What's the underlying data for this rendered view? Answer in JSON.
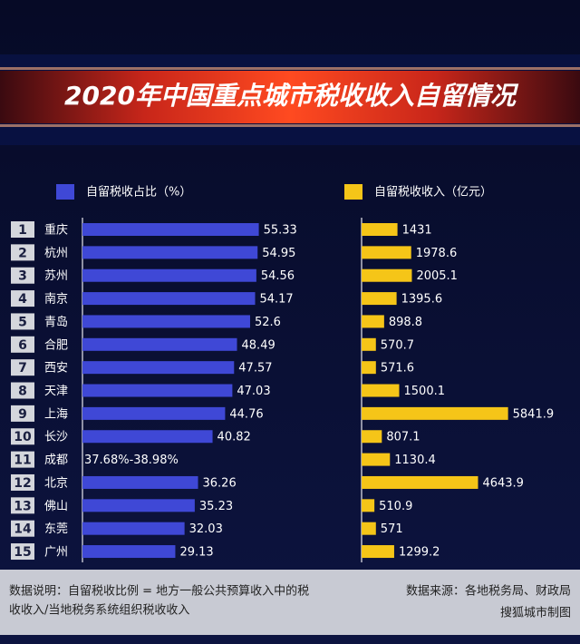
{
  "title": "2020年中国重点城市税收收入自留情况",
  "ranks": [
    1,
    2,
    3,
    4,
    5,
    6,
    7,
    8,
    9,
    10,
    11,
    12,
    13,
    14,
    15
  ],
  "chart_data": [
    {
      "type": "bar",
      "orientation": "horizontal",
      "categories": [
        "重庆",
        "杭州",
        "苏州",
        "南京",
        "青岛",
        "合肥",
        "西安",
        "天津",
        "上海",
        "长沙",
        "成都",
        "北京",
        "佛山",
        "东莞",
        "广州"
      ],
      "series": [
        {
          "name": "自留税收占比（%）",
          "color": "#3f48d6",
          "values": [
            55.33,
            54.95,
            54.56,
            54.17,
            52.6,
            48.49,
            47.57,
            47.03,
            44.76,
            40.82,
            null,
            36.26,
            35.23,
            32.03,
            29.13
          ],
          "value_labels": [
            null,
            null,
            null,
            null,
            null,
            null,
            null,
            null,
            null,
            null,
            "37.68%-38.98%",
            null,
            null,
            null,
            null
          ]
        }
      ],
      "xlim": [
        0,
        60
      ]
    },
    {
      "type": "bar",
      "orientation": "horizontal",
      "series": [
        {
          "name": "自留税收收入（亿元）",
          "color": "#f5c518",
          "values": [
            1431,
            1978.6,
            2005.1,
            1395.6,
            898.8,
            570.7,
            571.6,
            1500.1,
            5841.9,
            807.1,
            1130.4,
            4643.9,
            510.9,
            571,
            1299.2
          ]
        }
      ],
      "xlim": [
        0,
        6000
      ]
    }
  ],
  "footer": {
    "note": [
      "数据说明：自留税收比例 = 地方一般公共预算收入中的税",
      "收收入/当地税务系统组织税收收入"
    ],
    "source": "数据来源：各地税务局、财政局",
    "credit": "搜狐城市制图"
  }
}
